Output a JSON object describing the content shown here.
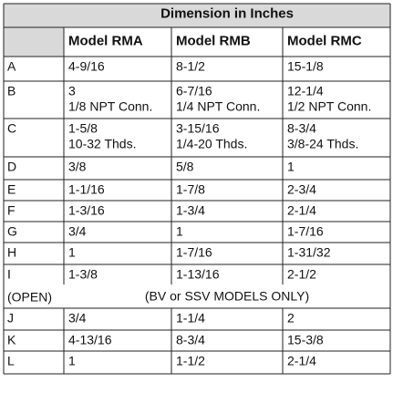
{
  "header": {
    "title": "Dimension in Inches"
  },
  "columns": [
    "Model RMA",
    "Model RMB",
    "Model RMC"
  ],
  "rows": [
    {
      "label": [
        "A"
      ],
      "cells": [
        [
          "4-9/16"
        ],
        [
          "8-1/2"
        ],
        [
          "15-1/8"
        ]
      ]
    },
    {
      "label": [
        "B"
      ],
      "cells": [
        [
          "3",
          "1/8 NPT Conn."
        ],
        [
          "6-7/16",
          "1/4 NPT Conn."
        ],
        [
          "12-1/4",
          "1/2 NPT Conn."
        ]
      ]
    },
    {
      "label": [
        "C"
      ],
      "cells": [
        [
          "1-5/8",
          "10-32 Thds."
        ],
        [
          "3-15/16",
          "1/4-20 Thds."
        ],
        [
          "8-3/4",
          "3/8-24 Thds."
        ]
      ]
    },
    {
      "label": [
        "D"
      ],
      "cells": [
        [
          "3/8"
        ],
        [
          "5/8"
        ],
        [
          "1"
        ]
      ]
    },
    {
      "label": [
        "E"
      ],
      "cells": [
        [
          "1-1/16"
        ],
        [
          "1-7/8"
        ],
        [
          "2-3/4"
        ]
      ]
    },
    {
      "label": [
        "F"
      ],
      "cells": [
        [
          "1-3/16"
        ],
        [
          "1-3/4"
        ],
        [
          "2-1/4"
        ]
      ]
    },
    {
      "label": [
        "G"
      ],
      "cells": [
        [
          "3/4"
        ],
        [
          "1"
        ],
        [
          "1-7/16"
        ]
      ]
    },
    {
      "label": [
        "H"
      ],
      "cells": [
        [
          "1"
        ],
        [
          "1-7/16"
        ],
        [
          "1-31/32"
        ]
      ]
    },
    {
      "label": [
        "I",
        "(OPEN)"
      ],
      "cells": [
        [
          "1-3/8"
        ],
        [
          "1-13/16"
        ],
        [
          "2-1/2"
        ]
      ],
      "note": "(BV or SSV MODELS ONLY)"
    },
    {
      "label": [
        "J"
      ],
      "cells": [
        [
          "3/4"
        ],
        [
          "1-1/4"
        ],
        [
          "2"
        ]
      ]
    },
    {
      "label": [
        "K"
      ],
      "cells": [
        [
          "4-13/16"
        ],
        [
          "8-3/4"
        ],
        [
          "15-3/8"
        ]
      ]
    },
    {
      "label": [
        "L"
      ],
      "cells": [
        [
          "1"
        ],
        [
          "1-1/2"
        ],
        [
          "2-1/4"
        ]
      ]
    }
  ]
}
